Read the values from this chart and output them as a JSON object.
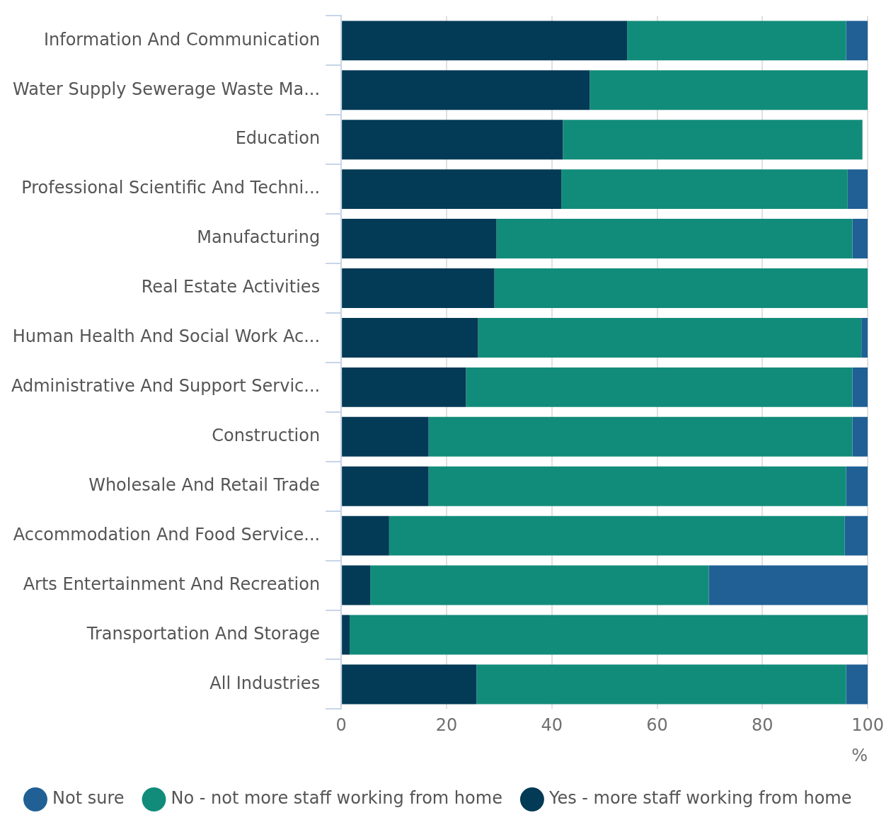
{
  "chart_data": {
    "type": "bar",
    "orientation": "horizontal",
    "stacked": true,
    "categories": [
      "Information And Communication",
      "Water Supply Sewerage Waste Ma...",
      "Education",
      "Professional Scientific And Techni...",
      "Manufacturing",
      "Real Estate Activities",
      "Human Health And Social Work Ac...",
      "Administrative And Support Servic...",
      "Construction",
      "Wholesale And Retail Trade",
      "Accommodation And Food Service...",
      "Arts Entertainment And Recreation",
      "Transportation And Storage",
      "All Industries"
    ],
    "series": [
      {
        "name": "Yes - more staff working from home",
        "color": "#033a56",
        "values": [
          54.3,
          47.2,
          42.1,
          41.8,
          29.5,
          29.1,
          26.0,
          23.7,
          16.6,
          16.6,
          9.1,
          5.5,
          1.6,
          25.7
        ]
      },
      {
        "name": "No - not more staff working from home",
        "color": "#128c7a",
        "values": [
          41.6,
          52.8,
          56.9,
          54.4,
          67.6,
          70.9,
          72.8,
          73.4,
          80.5,
          79.3,
          86.5,
          64.3,
          98.4,
          70.2
        ]
      },
      {
        "name": "Not sure",
        "color": "#206095",
        "values": [
          4.1,
          0,
          0,
          3.8,
          2.9,
          0,
          1.2,
          2.9,
          2.9,
          4.1,
          4.4,
          30.2,
          0,
          4.1
        ]
      }
    ],
    "xlabel": "%",
    "xlim": [
      0,
      100
    ],
    "xticks": [
      0,
      20,
      40,
      60,
      80,
      100
    ],
    "grid": "x",
    "legend": "bottom"
  }
}
